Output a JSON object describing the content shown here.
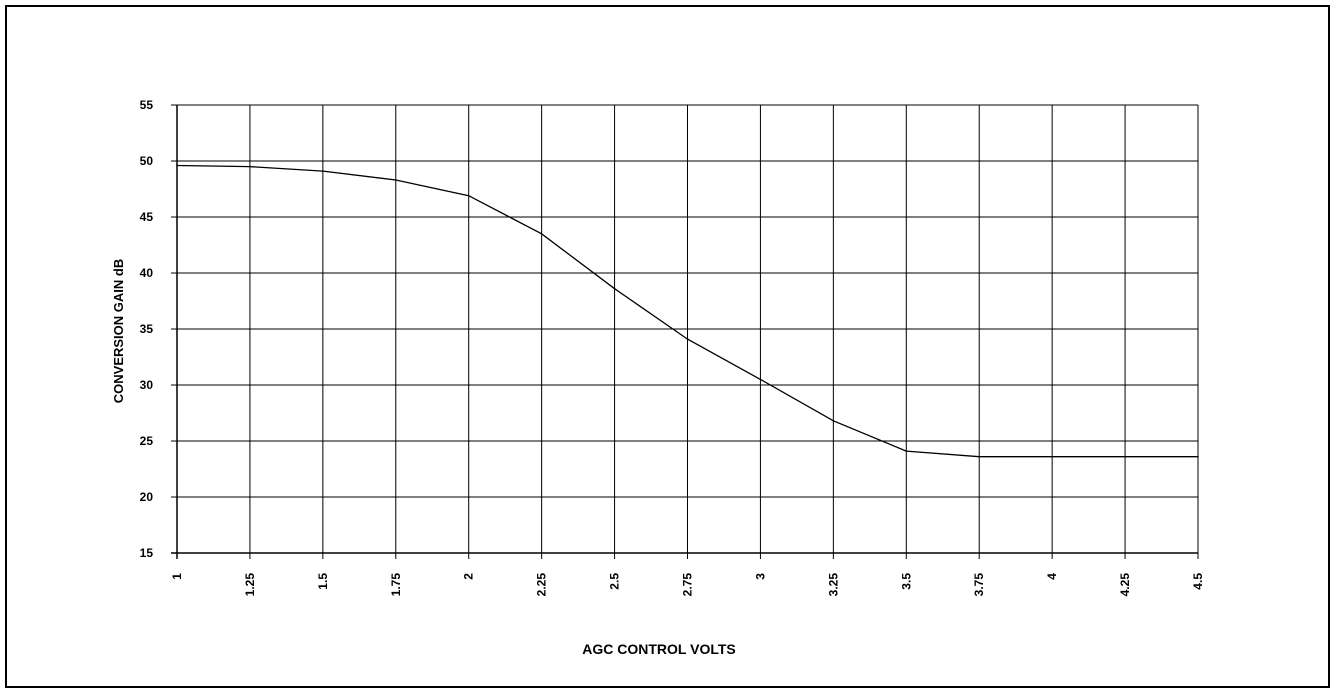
{
  "chart_data": {
    "type": "line",
    "title": "",
    "xlabel": "AGC CONTROL VOLTS",
    "ylabel": "CONVERSION GAIN dB",
    "xlim": [
      1,
      4.5
    ],
    "ylim": [
      15,
      55
    ],
    "x_ticks": [
      "1",
      "1.25",
      "1.5",
      "1.75",
      "2",
      "2.25",
      "2.5",
      "2.75",
      "3",
      "3.25",
      "3.5",
      "3.75",
      "4",
      "4.25",
      "4.5"
    ],
    "y_ticks": [
      "55",
      "50",
      "45",
      "40",
      "35",
      "30",
      "25",
      "20",
      "15"
    ],
    "grid": true,
    "legend": "none",
    "line_color": "#000000",
    "series": [
      {
        "x": [
          1,
          1.25,
          1.5,
          1.75,
          2,
          2.25,
          2.5,
          2.75,
          3,
          3.25,
          3.5,
          3.75,
          4,
          4.25,
          4.5
        ],
        "values": [
          49.6,
          49.5,
          49.1,
          48.3,
          46.9,
          43.5,
          38.6,
          34.1,
          30.5,
          26.8,
          24.1,
          23.6,
          23.6,
          23.6,
          23.6
        ]
      }
    ]
  }
}
